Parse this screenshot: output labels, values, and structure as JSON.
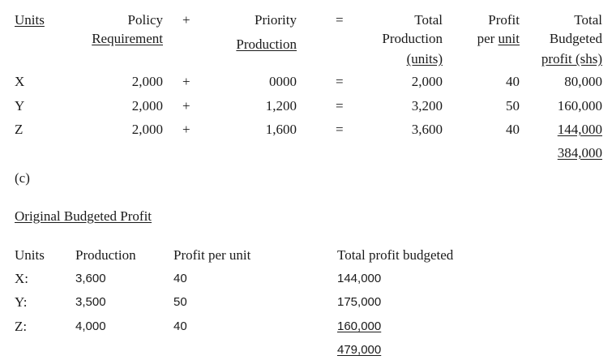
{
  "table1": {
    "headers": {
      "units": "Units",
      "policy1": "Policy",
      "policy2": "Requirement",
      "plus": "+",
      "priority1": "Priority",
      "priority2": "Production",
      "equals": "=",
      "total1": "Total",
      "total2": "Production",
      "total3": "(units)",
      "profit1": "Profit",
      "profit2a": "per ",
      "profit2b": "unit",
      "budget1": "Total",
      "budget2": "Budgeted",
      "budget3": "profit (shs)"
    },
    "rows": [
      {
        "unit": "X",
        "policy": "2,000",
        "plus": "+",
        "priority": "0000",
        "eq": "=",
        "total": "2,000",
        "profit": "40",
        "budget": "80,000"
      },
      {
        "unit": "Y",
        "policy": "2,000",
        "plus": "+",
        "priority": "1,200",
        "eq": "=",
        "total": "3,200",
        "profit": "50",
        "budget": "160,000"
      },
      {
        "unit": "Z",
        "policy": "2,000",
        "plus": "+",
        "priority": "1,600",
        "eq": "=",
        "total": "3,600",
        "profit": "40",
        "budget": "144,000"
      }
    ],
    "grand_total": "384,000"
  },
  "section_label": "(c)",
  "section_title": "Original Budgeted Profit",
  "table2": {
    "headers": [
      "Units",
      "Production",
      "Profit per unit",
      "Total profit budgeted"
    ],
    "rows": [
      {
        "unit": "X:",
        "production": "3,600",
        "profit": "40",
        "total": "144,000"
      },
      {
        "unit": "Y:",
        "production": "3,500",
        "profit": "50",
        "total": "175,000"
      },
      {
        "unit": "Z:",
        "production": "4,000",
        "profit": "40",
        "total": "160,000"
      }
    ],
    "grand_total": "479,000"
  }
}
